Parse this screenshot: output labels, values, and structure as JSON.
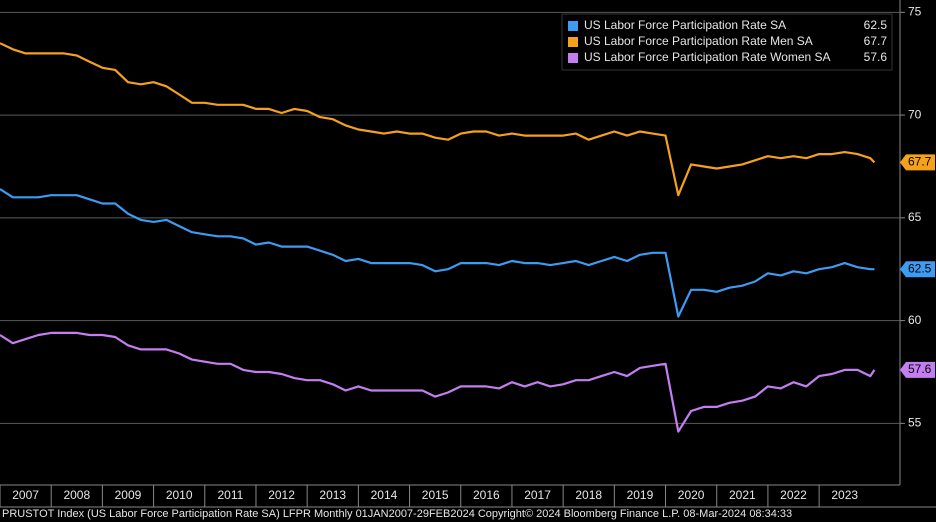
{
  "chart_data": {
    "type": "line",
    "x": [
      2007,
      2007.25,
      2007.5,
      2007.75,
      2008,
      2008.25,
      2008.5,
      2008.75,
      2009,
      2009.25,
      2009.5,
      2009.75,
      2010,
      2010.25,
      2010.5,
      2010.75,
      2011,
      2011.25,
      2011.5,
      2011.75,
      2012,
      2012.25,
      2012.5,
      2012.75,
      2013,
      2013.25,
      2013.5,
      2013.75,
      2014,
      2014.25,
      2014.5,
      2014.75,
      2015,
      2015.25,
      2015.5,
      2015.75,
      2016,
      2016.25,
      2016.5,
      2016.75,
      2017,
      2017.25,
      2017.5,
      2017.75,
      2018,
      2018.25,
      2018.5,
      2018.75,
      2019,
      2019.25,
      2019.5,
      2019.75,
      2020,
      2020.25,
      2020.5,
      2020.75,
      2021,
      2021.25,
      2021.5,
      2021.75,
      2022,
      2022.25,
      2022.5,
      2022.75,
      2023,
      2023.25,
      2023.5,
      2023.75,
      2024,
      2024.08
    ],
    "series": [
      {
        "name": "US Labor Force Participation Rate SA",
        "color": "#3d9bf2",
        "values": [
          66.4,
          66.0,
          66.0,
          66.0,
          66.1,
          66.1,
          66.1,
          65.9,
          65.7,
          65.7,
          65.2,
          64.9,
          64.8,
          64.9,
          64.6,
          64.3,
          64.2,
          64.1,
          64.1,
          64.0,
          63.7,
          63.8,
          63.6,
          63.6,
          63.6,
          63.4,
          63.2,
          62.9,
          63.0,
          62.8,
          62.8,
          62.8,
          62.8,
          62.7,
          62.4,
          62.5,
          62.8,
          62.8,
          62.8,
          62.7,
          62.9,
          62.8,
          62.8,
          62.7,
          62.8,
          62.9,
          62.7,
          62.9,
          63.1,
          62.9,
          63.2,
          63.3,
          63.3,
          60.2,
          61.5,
          61.5,
          61.4,
          61.6,
          61.7,
          61.9,
          62.3,
          62.2,
          62.4,
          62.3,
          62.5,
          62.6,
          62.8,
          62.6,
          62.5,
          62.5
        ]
      },
      {
        "name": "US Labor Force Participation Rate Men SA",
        "color": "#f5a11c",
        "values": [
          73.5,
          73.2,
          73.0,
          73.0,
          73.0,
          73.0,
          72.9,
          72.6,
          72.3,
          72.2,
          71.6,
          71.5,
          71.6,
          71.4,
          71.0,
          70.6,
          70.6,
          70.5,
          70.5,
          70.5,
          70.3,
          70.3,
          70.1,
          70.3,
          70.2,
          69.9,
          69.8,
          69.5,
          69.3,
          69.2,
          69.1,
          69.2,
          69.1,
          69.1,
          68.9,
          68.8,
          69.1,
          69.2,
          69.2,
          69.0,
          69.1,
          69.0,
          69.0,
          69.0,
          69.0,
          69.1,
          68.8,
          69.0,
          69.2,
          69.0,
          69.2,
          69.1,
          69.0,
          66.1,
          67.6,
          67.5,
          67.4,
          67.5,
          67.6,
          67.8,
          68.0,
          67.9,
          68.0,
          67.9,
          68.1,
          68.1,
          68.2,
          68.1,
          67.9,
          67.7
        ]
      },
      {
        "name": "US Labor Force Participation Rate Women SA",
        "color": "#c47ef2",
        "values": [
          59.3,
          58.9,
          59.1,
          59.3,
          59.4,
          59.4,
          59.4,
          59.3,
          59.3,
          59.2,
          58.8,
          58.6,
          58.6,
          58.6,
          58.4,
          58.1,
          58.0,
          57.9,
          57.9,
          57.6,
          57.5,
          57.5,
          57.4,
          57.2,
          57.1,
          57.1,
          56.9,
          56.6,
          56.8,
          56.6,
          56.6,
          56.6,
          56.6,
          56.6,
          56.3,
          56.5,
          56.8,
          56.8,
          56.8,
          56.7,
          57.0,
          56.8,
          57.0,
          56.8,
          56.9,
          57.1,
          57.1,
          57.3,
          57.5,
          57.3,
          57.7,
          57.8,
          57.9,
          54.6,
          55.6,
          55.8,
          55.8,
          56.0,
          56.1,
          56.3,
          56.8,
          56.7,
          57.0,
          56.8,
          57.3,
          57.4,
          57.6,
          57.6,
          57.3,
          57.6
        ]
      }
    ],
    "xlim": [
      2007,
      2024.58
    ],
    "xticks": [
      2007,
      2008,
      2009,
      2010,
      2011,
      2012,
      2013,
      2014,
      2015,
      2016,
      2017,
      2018,
      2019,
      2020,
      2021,
      2022,
      2023
    ],
    "ylim": [
      52,
      75.6
    ],
    "yticks": [
      55,
      60,
      65,
      70,
      75
    ],
    "grid": true,
    "legend": "upper right",
    "footer": "PRUSTOT Index (US Labor Force Participation Rate SA) LFPR  Monthly 01JAN2007-29FEB2024 Copyright© 2024 Bloomberg Finance L.P. 08-Mar-2024 08:34:33"
  }
}
